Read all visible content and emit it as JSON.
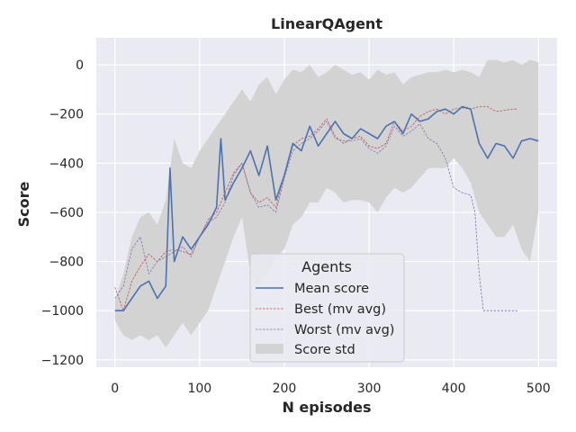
{
  "chart_data": {
    "type": "line",
    "title": "LinearQAgent",
    "xlabel": "N episodes",
    "ylabel": "Score",
    "xlim": [
      -22,
      522
    ],
    "ylim": [
      -1230,
      110
    ],
    "xticks": [
      0,
      100,
      200,
      300,
      400,
      500
    ],
    "yticks": [
      0,
      -200,
      -400,
      -600,
      -800,
      -1000,
      -1200
    ],
    "grid": true,
    "legend": {
      "title": "Agents",
      "placement": "lower-center"
    },
    "series": [
      {
        "name": "Mean score",
        "style": "solid",
        "color": "#4c72b0",
        "x": [
          0,
          10,
          20,
          30,
          40,
          50,
          60,
          65,
          70,
          80,
          90,
          100,
          110,
          120,
          125,
          130,
          140,
          150,
          160,
          170,
          180,
          190,
          200,
          210,
          220,
          230,
          240,
          250,
          260,
          270,
          280,
          290,
          300,
          310,
          320,
          330,
          340,
          350,
          360,
          370,
          380,
          390,
          400,
          410,
          420,
          430,
          440,
          450,
          460,
          470,
          480,
          490,
          500
        ],
        "y": [
          -1000,
          -1000,
          -950,
          -900,
          -880,
          -950,
          -900,
          -420,
          -800,
          -700,
          -750,
          -700,
          -650,
          -580,
          -300,
          -550,
          -480,
          -420,
          -350,
          -450,
          -330,
          -550,
          -450,
          -320,
          -350,
          -250,
          -330,
          -280,
          -230,
          -280,
          -300,
          -260,
          -280,
          -300,
          -250,
          -230,
          -280,
          -200,
          -230,
          -220,
          -190,
          -180,
          -200,
          -170,
          -180,
          -320,
          -380,
          -320,
          -330,
          -380,
          -310,
          -300,
          -310
        ]
      },
      {
        "name": "Best (mv avg)",
        "style": "dashed",
        "color": "#c44e52",
        "x": [
          0,
          10,
          20,
          30,
          40,
          50,
          60,
          70,
          80,
          90,
          100,
          110,
          120,
          130,
          140,
          150,
          160,
          170,
          180,
          190,
          200,
          210,
          220,
          230,
          240,
          250,
          260,
          270,
          280,
          290,
          300,
          310,
          320,
          330,
          340,
          350,
          360,
          370,
          380,
          390,
          400,
          410,
          420,
          430,
          440,
          450,
          460,
          470,
          475
        ],
        "y": [
          -905,
          -1000,
          -880,
          -820,
          -770,
          -800,
          -760,
          -750,
          -760,
          -770,
          -700,
          -630,
          -600,
          -520,
          -440,
          -400,
          -520,
          -560,
          -540,
          -580,
          -450,
          -330,
          -300,
          -290,
          -260,
          -220,
          -290,
          -320,
          -300,
          -290,
          -330,
          -340,
          -320,
          -230,
          -270,
          -250,
          -210,
          -190,
          -180,
          -200,
          -180,
          -175,
          -180,
          -170,
          -170,
          -190,
          -185,
          -180,
          -180
        ]
      },
      {
        "name": "Worst (mv avg)",
        "style": "dashed",
        "color": "#8172b2",
        "x": [
          0,
          10,
          20,
          30,
          40,
          50,
          60,
          70,
          80,
          90,
          100,
          110,
          120,
          130,
          140,
          150,
          160,
          170,
          180,
          190,
          200,
          210,
          220,
          230,
          240,
          250,
          260,
          270,
          280,
          290,
          300,
          310,
          320,
          330,
          340,
          350,
          360,
          370,
          380,
          390,
          400,
          410,
          420,
          425,
          430,
          435,
          440,
          450,
          460,
          470,
          475
        ],
        "y": [
          -950,
          -900,
          -750,
          -700,
          -850,
          -800,
          -780,
          -760,
          -740,
          -780,
          -700,
          -640,
          -620,
          -560,
          -450,
          -400,
          -520,
          -580,
          -570,
          -600,
          -460,
          -350,
          -320,
          -300,
          -270,
          -230,
          -300,
          -310,
          -310,
          -300,
          -340,
          -360,
          -330,
          -250,
          -290,
          -270,
          -240,
          -300,
          -320,
          -380,
          -500,
          -520,
          -530,
          -600,
          -850,
          -1000,
          -1000,
          -1000,
          -1000,
          -1000,
          -1000
        ]
      },
      {
        "name": "Score std",
        "style": "band",
        "color": "#d3d3d3",
        "x": [
          0,
          10,
          20,
          30,
          40,
          50,
          60,
          70,
          80,
          90,
          100,
          110,
          120,
          130,
          140,
          150,
          160,
          170,
          180,
          190,
          200,
          210,
          220,
          230,
          240,
          250,
          260,
          270,
          280,
          290,
          300,
          310,
          320,
          330,
          340,
          350,
          360,
          370,
          380,
          390,
          400,
          410,
          420,
          430,
          440,
          450,
          460,
          470,
          480,
          490,
          500
        ],
        "upper": [
          -960,
          -850,
          -700,
          -620,
          -600,
          -650,
          -550,
          -300,
          -400,
          -420,
          -350,
          -300,
          -250,
          -200,
          -150,
          -100,
          -150,
          -80,
          -50,
          -120,
          -60,
          -20,
          -30,
          0,
          -50,
          -30,
          0,
          -20,
          -40,
          -30,
          -60,
          -20,
          -40,
          -30,
          -80,
          -50,
          -40,
          -30,
          -30,
          -20,
          -30,
          -20,
          -30,
          -50,
          20,
          20,
          10,
          20,
          0,
          20,
          10
        ],
        "lower": [
          -1040,
          -1100,
          -1120,
          -1100,
          -1120,
          -1100,
          -1150,
          -1100,
          -1050,
          -1100,
          -1050,
          -1000,
          -900,
          -800,
          -700,
          -620,
          -850,
          -900,
          -850,
          -780,
          -750,
          -650,
          -620,
          -560,
          -560,
          -500,
          -520,
          -560,
          -550,
          -550,
          -560,
          -600,
          -540,
          -500,
          -520,
          -500,
          -460,
          -420,
          -420,
          -420,
          -380,
          -420,
          -480,
          -600,
          -650,
          -700,
          -700,
          -650,
          -750,
          -800,
          -600
        ]
      }
    ]
  }
}
